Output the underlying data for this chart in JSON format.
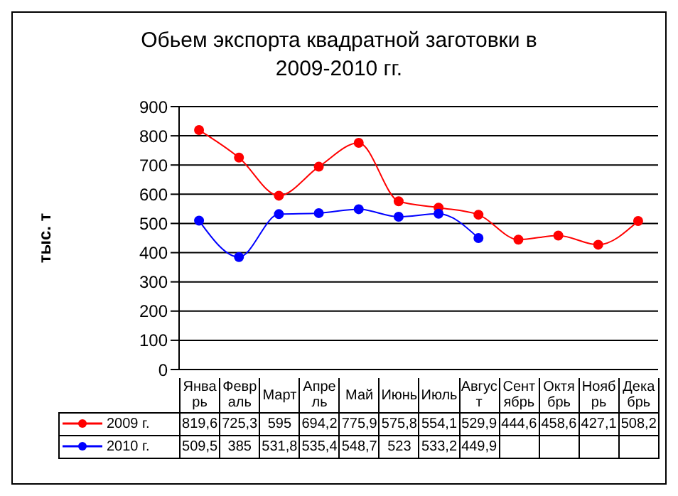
{
  "chart_data": {
    "type": "line",
    "title": "Обьем экспорта квадратной заготовки в 2009-2010 гг.",
    "ylabel": "тыс. т",
    "categories": [
      "Январь",
      "Февраль",
      "Март",
      "Апрель",
      "Май",
      "Июнь",
      "Июль",
      "Август",
      "Сентябрь",
      "Октябрь",
      "Ноябрь",
      "Декабрь"
    ],
    "series": [
      {
        "name": "2009 г.",
        "color": "#ff0000",
        "values": [
          819.6,
          725.3,
          595,
          694.2,
          775.9,
          575.8,
          554.1,
          529.9,
          444.6,
          458.6,
          427.1,
          508.2
        ],
        "value_labels": [
          "819,6",
          "725,3",
          "595",
          "694,2",
          "775,9",
          "575,8",
          "554,1",
          "529,9",
          "444,6",
          "458,6",
          "427,1",
          "508,2"
        ]
      },
      {
        "name": "2010 г.",
        "color": "#0000ff",
        "values": [
          509.5,
          385,
          531.8,
          535.4,
          548.7,
          523,
          533.2,
          449.9,
          null,
          null,
          null,
          null
        ],
        "value_labels": [
          "509,5",
          "385",
          "531,8",
          "535,4",
          "548,7",
          "523",
          "533,2",
          "449,9",
          null,
          null,
          null,
          null
        ]
      }
    ],
    "ylim": [
      0,
      900
    ],
    "yticks": [
      0,
      100,
      200,
      300,
      400,
      500,
      600,
      700,
      800,
      900
    ],
    "grid": "y",
    "legend": "bottom",
    "marker": "circle",
    "line_style": "solid"
  }
}
